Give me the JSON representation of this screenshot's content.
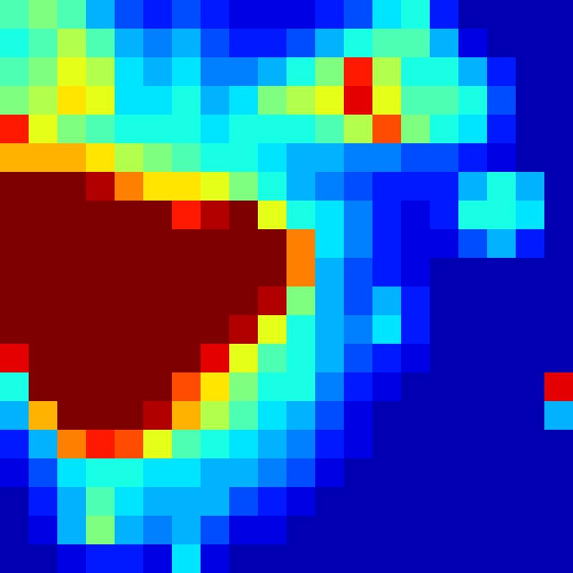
{
  "chart_data": {
    "type": "heatmap",
    "tick_labels": false,
    "zlim": [
      0,
      1
    ],
    "cells": [
      [
        0.45,
        0.5,
        0.45,
        0.3,
        0.2,
        0.15,
        0.2,
        0.15,
        0.1,
        0.1,
        0.1,
        0.15,
        0.2,
        0.35,
        0.4,
        0.15,
        0.05,
        0.05,
        0.05,
        0.05
      ],
      [
        0.4,
        0.45,
        0.55,
        0.45,
        0.3,
        0.25,
        0.3,
        0.2,
        0.15,
        0.15,
        0.2,
        0.3,
        0.4,
        0.45,
        0.45,
        0.3,
        0.1,
        0.05,
        0.05,
        0.05
      ],
      [
        0.45,
        0.5,
        0.6,
        0.55,
        0.35,
        0.3,
        0.35,
        0.25,
        0.25,
        0.3,
        0.4,
        0.5,
        0.85,
        0.55,
        0.4,
        0.4,
        0.3,
        0.15,
        0.05,
        0.05
      ],
      [
        0.5,
        0.55,
        0.65,
        0.6,
        0.35,
        0.35,
        0.4,
        0.3,
        0.35,
        0.5,
        0.55,
        0.6,
        0.9,
        0.6,
        0.45,
        0.45,
        0.4,
        0.2,
        0.05,
        0.05
      ],
      [
        0.85,
        0.6,
        0.5,
        0.45,
        0.4,
        0.4,
        0.4,
        0.35,
        0.4,
        0.4,
        0.4,
        0.45,
        0.55,
        0.8,
        0.5,
        0.4,
        0.35,
        0.15,
        0.05,
        0.05
      ],
      [
        0.7,
        0.7,
        0.7,
        0.65,
        0.55,
        0.5,
        0.45,
        0.4,
        0.4,
        0.35,
        0.3,
        0.3,
        0.25,
        0.25,
        0.2,
        0.2,
        0.15,
        0.1,
        0.05,
        0.05
      ],
      [
        1,
        1,
        1,
        0.95,
        0.75,
        0.65,
        0.65,
        0.6,
        0.5,
        0.4,
        0.3,
        0.25,
        0.2,
        0.15,
        0.15,
        0.15,
        0.3,
        0.4,
        0.3,
        0.05
      ],
      [
        1,
        1,
        1,
        1,
        1,
        1,
        0.85,
        0.95,
        1,
        0.6,
        0.4,
        0.35,
        0.25,
        0.15,
        0.1,
        0.15,
        0.4,
        0.4,
        0.35,
        0.05
      ],
      [
        1,
        1,
        1,
        1,
        1,
        1,
        1,
        1,
        1,
        1,
        0.75,
        0.35,
        0.25,
        0.15,
        0.1,
        0.1,
        0.2,
        0.3,
        0.15,
        0.05
      ],
      [
        1,
        1,
        1,
        1,
        1,
        1,
        1,
        1,
        1,
        1,
        0.75,
        0.3,
        0.2,
        0.15,
        0.1,
        0.05,
        0.05,
        0.05,
        0.05,
        0.05
      ],
      [
        1,
        1,
        1,
        1,
        1,
        1,
        1,
        1,
        1,
        0.95,
        0.5,
        0.3,
        0.2,
        0.3,
        0.15,
        0.05,
        0.05,
        0.05,
        0.05,
        0.05
      ],
      [
        1,
        1,
        1,
        1,
        1,
        1,
        1,
        1,
        0.95,
        0.6,
        0.4,
        0.3,
        0.25,
        0.35,
        0.15,
        0.05,
        0.05,
        0.05,
        0.05,
        0.05
      ],
      [
        0.9,
        1,
        1,
        1,
        1,
        1,
        1,
        0.9,
        0.6,
        0.45,
        0.4,
        0.3,
        0.2,
        0.15,
        0.1,
        0.05,
        0.05,
        0.05,
        0.05,
        0.05
      ],
      [
        0.4,
        1,
        1,
        1,
        1,
        1,
        0.8,
        0.65,
        0.5,
        0.4,
        0.4,
        0.25,
        0.15,
        0.1,
        0.05,
        0.05,
        0.05,
        0.05,
        0.05,
        0.9
      ],
      [
        0.3,
        0.7,
        1,
        1,
        1,
        0.95,
        0.7,
        0.55,
        0.45,
        0.35,
        0.3,
        0.2,
        0.1,
        0.05,
        0.05,
        0.05,
        0.05,
        0.05,
        0.05,
        0.3
      ],
      [
        0.15,
        0.3,
        0.75,
        0.85,
        0.8,
        0.6,
        0.45,
        0.4,
        0.35,
        0.3,
        0.25,
        0.15,
        0.1,
        0.05,
        0.05,
        0.05,
        0.05,
        0.05,
        0.05,
        0.05
      ],
      [
        0.1,
        0.2,
        0.35,
        0.4,
        0.4,
        0.35,
        0.35,
        0.3,
        0.3,
        0.25,
        0.2,
        0.1,
        0.05,
        0.05,
        0.05,
        0.05,
        0.05,
        0.05,
        0.05,
        0.05
      ],
      [
        0.05,
        0.15,
        0.3,
        0.45,
        0.35,
        0.3,
        0.3,
        0.3,
        0.2,
        0.15,
        0.1,
        0.05,
        0.05,
        0.05,
        0.05,
        0.05,
        0.05,
        0.05,
        0.05,
        0.05
      ],
      [
        0.05,
        0.1,
        0.3,
        0.5,
        0.3,
        0.25,
        0.3,
        0.2,
        0.1,
        0.1,
        0.05,
        0.05,
        0.05,
        0.05,
        0.05,
        0.05,
        0.05,
        0.05,
        0.05,
        0.05
      ],
      [
        0.05,
        0.05,
        0.1,
        0.15,
        0.15,
        0.1,
        0.35,
        0.1,
        0.05,
        0.05,
        0.05,
        0.05,
        0.05,
        0.05,
        0.05,
        0.05,
        0.05,
        0.05,
        0.05,
        0.05
      ]
    ]
  }
}
